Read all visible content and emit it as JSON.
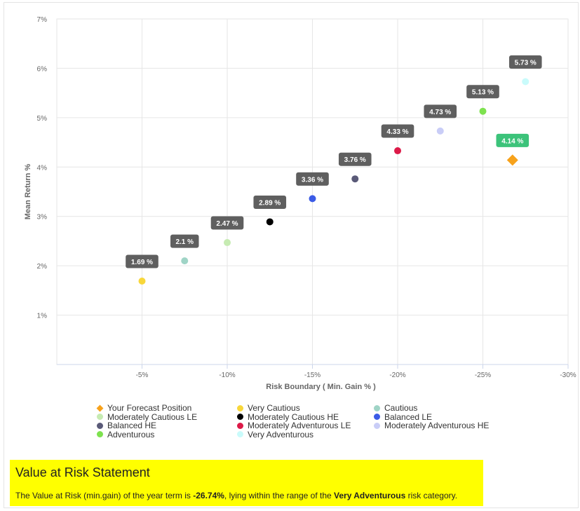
{
  "chart_data": {
    "type": "scatter",
    "xlabel": "Risk Boundary ( Min. Gain % )",
    "ylabel": "Mean Return %",
    "x_ticks": [
      -5,
      -10,
      -15,
      -20,
      -25,
      -30
    ],
    "x_tick_labels": [
      "-5%",
      "-10%",
      "-15%",
      "-20%",
      "-25%",
      "-30%"
    ],
    "y_ticks": [
      1,
      2,
      3,
      4,
      5,
      6,
      7
    ],
    "y_tick_labels": [
      "1%",
      "2%",
      "3%",
      "4%",
      "5%",
      "6%",
      "7%"
    ],
    "xlim": [
      0,
      -30
    ],
    "ylim": [
      0,
      7
    ],
    "x_axis_reversed": true,
    "grid": true,
    "legend_position": "bottom",
    "series": [
      {
        "name": "Your Forecast Position",
        "color": "#f7a21b",
        "marker": "diamond",
        "x": -26.74,
        "y": 4.14,
        "label": "4.14 %",
        "label_color": "#3cc37a"
      },
      {
        "name": "Very Cautious",
        "color": "#f8d73a",
        "marker": "circle",
        "x": -5,
        "y": 1.69,
        "label": "1.69 %",
        "label_color": "#5f5f5f"
      },
      {
        "name": "Cautious",
        "color": "#9fd4c6",
        "marker": "circle",
        "x": -7.5,
        "y": 2.1,
        "label": "2.1 %",
        "label_color": "#5f5f5f"
      },
      {
        "name": "Moderately Cautious LE",
        "color": "#c6ebb2",
        "marker": "circle",
        "x": -10,
        "y": 2.47,
        "label": "2.47 %",
        "label_color": "#5f5f5f"
      },
      {
        "name": "Moderately Cautious HE",
        "color": "#000000",
        "marker": "circle",
        "x": -12.5,
        "y": 2.89,
        "label": "2.89 %",
        "label_color": "#5f5f5f"
      },
      {
        "name": "Balanced LE",
        "color": "#3b5be6",
        "marker": "circle",
        "x": -15,
        "y": 3.36,
        "label": "3.36 %",
        "label_color": "#5f5f5f"
      },
      {
        "name": "Balanced HE",
        "color": "#5a5a78",
        "marker": "circle",
        "x": -17.5,
        "y": 3.76,
        "label": "3.76 %",
        "label_color": "#5f5f5f"
      },
      {
        "name": "Moderately Adventurous LE",
        "color": "#dc1a48",
        "marker": "circle",
        "x": -20,
        "y": 4.33,
        "label": "4.33 %",
        "label_color": "#5f5f5f"
      },
      {
        "name": "Moderately Adventurous HE",
        "color": "#c9cdf7",
        "marker": "circle",
        "x": -22.5,
        "y": 4.73,
        "label": "4.73 %",
        "label_color": "#5f5f5f"
      },
      {
        "name": "Adventurous",
        "color": "#7ee24f",
        "marker": "circle",
        "x": -25,
        "y": 5.13,
        "label": "5.13 %",
        "label_color": "#5f5f5f"
      },
      {
        "name": "Very Adventurous",
        "color": "#c9fbfb",
        "marker": "circle",
        "x": -27.5,
        "y": 5.73,
        "label": "5.73 %",
        "label_color": "#5f5f5f"
      }
    ],
    "legend_order": [
      0,
      1,
      2,
      3,
      4,
      5,
      6,
      7,
      8,
      9,
      10
    ]
  },
  "statement": {
    "title": "Value at Risk Statement",
    "text_before": "The Value at Risk (min.gain) of the year term is ",
    "var_value": "-26.74%",
    "text_middle": ", lying within the range of the ",
    "category": "Very Adventurous",
    "text_after": " risk category."
  }
}
